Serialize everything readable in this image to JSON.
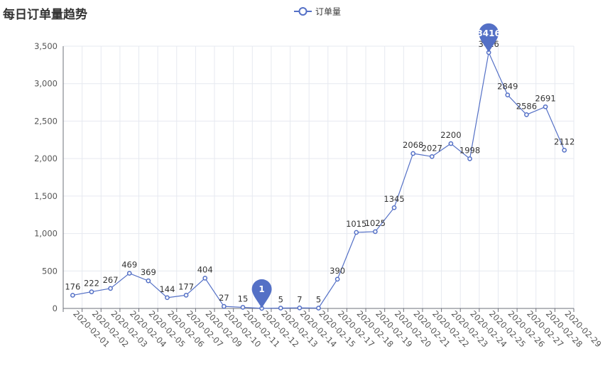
{
  "chart_data": {
    "type": "line",
    "title": "每日订单量趋势",
    "legend": {
      "position": "top-center"
    },
    "grid": true,
    "series_color": "#5470c6",
    "ylim": [
      0,
      3500
    ],
    "yticks": [
      0,
      500,
      1000,
      1500,
      2000,
      2500,
      3000,
      3500
    ],
    "ytick_labels": [
      "0",
      "500",
      "1,000",
      "1,500",
      "2,000",
      "2,500",
      "3,000",
      "3,500"
    ],
    "categories": [
      "2020-02-01",
      "2020-02-02",
      "2020-02-03",
      "2020-02-04",
      "2020-02-05",
      "2020-02-06",
      "2020-02-07",
      "2020-02-09",
      "2020-02-10",
      "2020-02-11",
      "2020-02-12",
      "2020-02-13",
      "2020-02-14",
      "2020-02-15",
      "2020-02-17",
      "2020-02-18",
      "2020-02-19",
      "2020-02-20",
      "2020-02-21",
      "2020-02-22",
      "2020-02-23",
      "2020-02-24",
      "2020-02-25",
      "2020-02-26",
      "2020-02-27",
      "2020-02-28",
      "2020-02-29"
    ],
    "series": [
      {
        "name": "订单量",
        "values": [
          176,
          222,
          267,
          469,
          369,
          144,
          177,
          404,
          27,
          15,
          1,
          5,
          7,
          5,
          390,
          1015,
          1025,
          1345,
          2068,
          2027,
          2200,
          1998,
          3416,
          2849,
          2586,
          2691,
          2112
        ]
      }
    ],
    "markers": [
      {
        "type": "min",
        "label": "1",
        "value": 1,
        "category": "2020-02-12"
      },
      {
        "type": "max",
        "label": "3416",
        "value": 3416,
        "category": "2020-02-25"
      }
    ]
  }
}
